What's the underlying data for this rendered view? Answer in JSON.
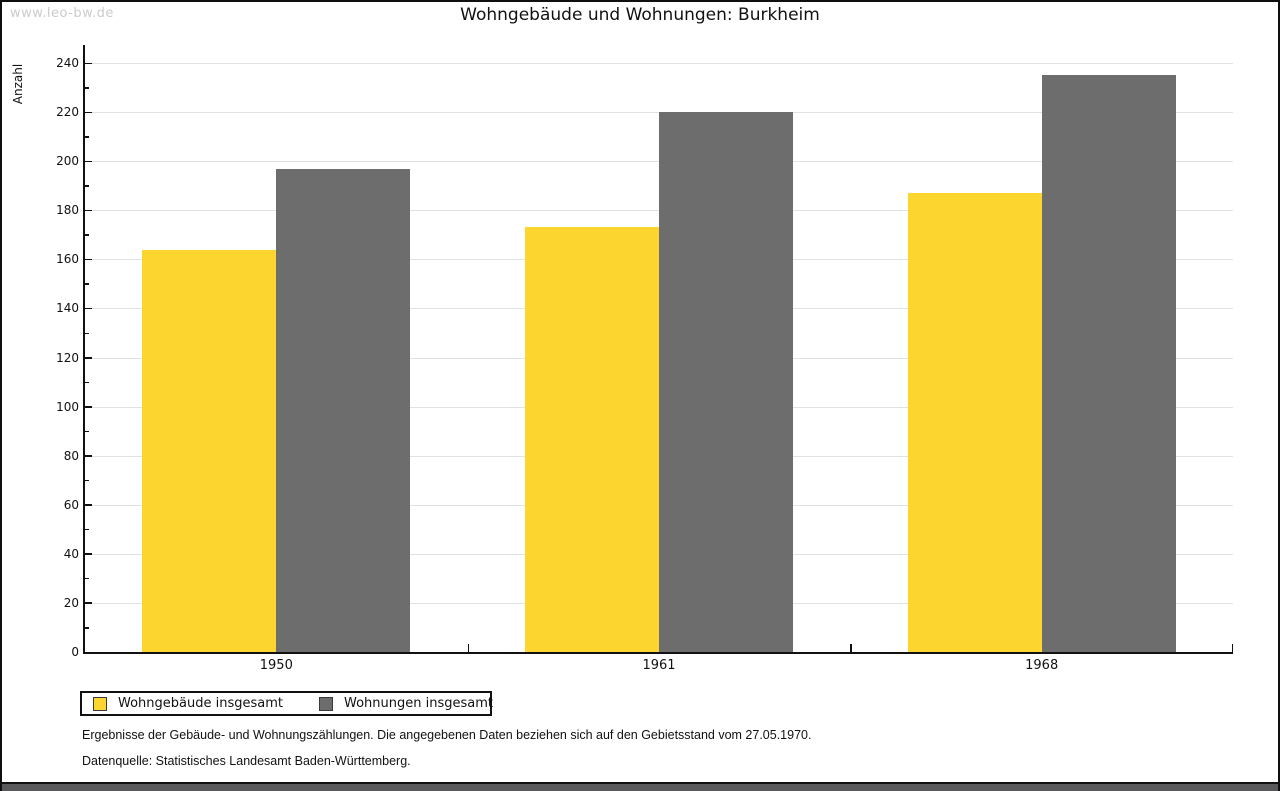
{
  "watermark": "www.leo-bw.de",
  "chart_data": {
    "type": "bar",
    "title": "Wohngebäude und Wohnungen: Burkheim",
    "ylabel": "Anzahl",
    "xlabel": "",
    "categories": [
      "1950",
      "1961",
      "1968"
    ],
    "series": [
      {
        "name": "Wohngebäude insgesamt",
        "color": "#FDD52F",
        "values": [
          164,
          173,
          187
        ]
      },
      {
        "name": "Wohnungen insgesamt",
        "color": "#6D6D6D",
        "values": [
          197,
          220,
          235
        ]
      }
    ],
    "ylim": [
      0,
      240
    ],
    "ytick_major": 20,
    "ytick_minor": 10,
    "grid": true,
    "legend_position": "bottom-left",
    "gridline_color": "#e2e2e2"
  },
  "footnotes": [
    "Ergebnisse der Gebäude- und Wohnungszählungen. Die angegebenen Daten beziehen sich auf den Gebietsstand vom 27.05.1970.",
    "Datenquelle: Statistisches Landesamt Baden-Württemberg."
  ]
}
